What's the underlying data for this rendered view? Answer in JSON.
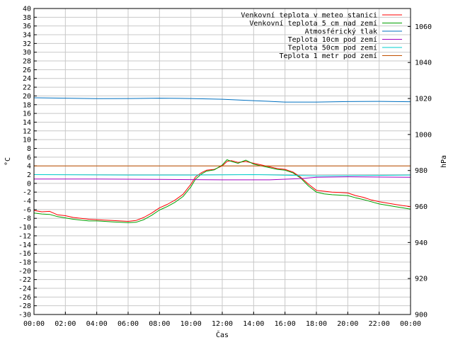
{
  "chart_data": {
    "type": "line",
    "xlabel": "Čas",
    "ylabel": "°C",
    "y2label": "hPa",
    "x_ticks": [
      "00:00",
      "02:00",
      "04:00",
      "06:00",
      "08:00",
      "10:00",
      "12:00",
      "14:00",
      "16:00",
      "18:00",
      "20:00",
      "22:00",
      "00:00"
    ],
    "x_range_hours": [
      0,
      24
    ],
    "ylim": [
      -30,
      40
    ],
    "y_ticks_step": 2,
    "y2lim": [
      900,
      1070
    ],
    "y2_ticks": [
      900,
      920,
      940,
      960,
      980,
      1000,
      1020,
      1040,
      1060
    ],
    "grid": true,
    "legend_position": "top-right",
    "series": [
      {
        "name": "Venkovní teplota v meteo stanici",
        "color": "#ff0000",
        "axis": "left",
        "points": [
          [
            0,
            -6.2
          ],
          [
            0.5,
            -6.5
          ],
          [
            1,
            -6.4
          ],
          [
            1.5,
            -7.2
          ],
          [
            2,
            -7.4
          ],
          [
            2.5,
            -7.8
          ],
          [
            3,
            -8.0
          ],
          [
            3.5,
            -8.2
          ],
          [
            4,
            -8.3
          ],
          [
            4.5,
            -8.4
          ],
          [
            5,
            -8.5
          ],
          [
            5.5,
            -8.6
          ],
          [
            6,
            -8.7
          ],
          [
            6.5,
            -8.5
          ],
          [
            7,
            -7.8
          ],
          [
            7.5,
            -6.8
          ],
          [
            8,
            -5.6
          ],
          [
            8.5,
            -4.8
          ],
          [
            9,
            -3.8
          ],
          [
            9.5,
            -2.5
          ],
          [
            10,
            -0.2
          ],
          [
            10.3,
            1.5
          ],
          [
            10.7,
            2.5
          ],
          [
            11,
            3.0
          ],
          [
            11.5,
            3.2
          ],
          [
            12,
            4.0
          ],
          [
            12.3,
            5.0
          ],
          [
            12.6,
            5.2
          ],
          [
            13,
            4.8
          ],
          [
            13.5,
            5.0
          ],
          [
            14,
            4.6
          ],
          [
            14.5,
            4.2
          ],
          [
            15,
            3.8
          ],
          [
            15.5,
            3.4
          ],
          [
            16,
            3.2
          ],
          [
            16.5,
            2.6
          ],
          [
            17,
            1.4
          ],
          [
            17.5,
            -0.2
          ],
          [
            18,
            -1.6
          ],
          [
            18.5,
            -1.8
          ],
          [
            19,
            -2.0
          ],
          [
            19.5,
            -2.1
          ],
          [
            20,
            -2.2
          ],
          [
            20.5,
            -2.8
          ],
          [
            21,
            -3.2
          ],
          [
            21.5,
            -3.8
          ],
          [
            22,
            -4.2
          ],
          [
            22.5,
            -4.5
          ],
          [
            23,
            -4.8
          ],
          [
            23.5,
            -5.1
          ],
          [
            24,
            -5.3
          ]
        ]
      },
      {
        "name": "Venkovní teplota 5 cm nad zemí",
        "color": "#00a000",
        "axis": "left",
        "points": [
          [
            0,
            -6.8
          ],
          [
            0.5,
            -7.0
          ],
          [
            1,
            -7.1
          ],
          [
            1.5,
            -7.6
          ],
          [
            2,
            -7.9
          ],
          [
            2.5,
            -8.2
          ],
          [
            3,
            -8.4
          ],
          [
            3.5,
            -8.6
          ],
          [
            4,
            -8.6
          ],
          [
            4.5,
            -8.7
          ],
          [
            5,
            -8.8
          ],
          [
            5.5,
            -8.9
          ],
          [
            6,
            -9.0
          ],
          [
            6.5,
            -8.9
          ],
          [
            7,
            -8.3
          ],
          [
            7.5,
            -7.3
          ],
          [
            8,
            -6.1
          ],
          [
            8.5,
            -5.3
          ],
          [
            9,
            -4.3
          ],
          [
            9.5,
            -3.0
          ],
          [
            10,
            -0.8
          ],
          [
            10.3,
            1.0
          ],
          [
            10.7,
            2.2
          ],
          [
            11,
            2.8
          ],
          [
            11.5,
            3.1
          ],
          [
            12,
            4.2
          ],
          [
            12.3,
            5.4
          ],
          [
            12.6,
            5.0
          ],
          [
            13,
            4.6
          ],
          [
            13.5,
            5.3
          ],
          [
            14,
            4.4
          ],
          [
            14.5,
            4.0
          ],
          [
            15,
            3.6
          ],
          [
            15.5,
            3.2
          ],
          [
            16,
            3.0
          ],
          [
            16.5,
            2.4
          ],
          [
            17,
            1.2
          ],
          [
            17.5,
            -0.6
          ],
          [
            18,
            -2.0
          ],
          [
            18.5,
            -2.4
          ],
          [
            19,
            -2.6
          ],
          [
            19.5,
            -2.7
          ],
          [
            20,
            -2.8
          ],
          [
            20.5,
            -3.3
          ],
          [
            21,
            -3.7
          ],
          [
            21.5,
            -4.2
          ],
          [
            22,
            -4.7
          ],
          [
            22.5,
            -5.0
          ],
          [
            23,
            -5.3
          ],
          [
            23.5,
            -5.6
          ],
          [
            24,
            -5.9
          ]
        ]
      },
      {
        "name": "Atmosférický tlak",
        "color": "#0070c0",
        "axis": "right",
        "points": [
          [
            0,
            1020.4
          ],
          [
            2,
            1020.2
          ],
          [
            4,
            1019.9
          ],
          [
            6,
            1020.0
          ],
          [
            8,
            1020.2
          ],
          [
            10,
            1020.0
          ],
          [
            12,
            1019.6
          ],
          [
            14,
            1018.8
          ],
          [
            16,
            1018.0
          ],
          [
            18,
            1018.0
          ],
          [
            20,
            1018.3
          ],
          [
            22,
            1018.4
          ],
          [
            24,
            1018.2
          ]
        ]
      },
      {
        "name": "Teplota 10cm pod zemí",
        "color": "#a000c0",
        "axis": "left",
        "points": [
          [
            0,
            1.0
          ],
          [
            4,
            1.0
          ],
          [
            8,
            0.9
          ],
          [
            12,
            0.8
          ],
          [
            15,
            0.8
          ],
          [
            17,
            1.1
          ],
          [
            18,
            1.4
          ],
          [
            20,
            1.5
          ],
          [
            24,
            1.4
          ]
        ]
      },
      {
        "name": "Teplota 50cm pod zemí",
        "color": "#00d0d0",
        "axis": "left",
        "points": [
          [
            0,
            2.0
          ],
          [
            6,
            1.9
          ],
          [
            10,
            1.9
          ],
          [
            14,
            2.0
          ],
          [
            17,
            1.8
          ],
          [
            18,
            1.7
          ],
          [
            21,
            1.8
          ],
          [
            24,
            1.9
          ]
        ]
      },
      {
        "name": "Teplota 1 metr pod zemí",
        "color": "#c05000",
        "axis": "left",
        "points": [
          [
            0,
            4.0
          ],
          [
            12,
            4.0
          ],
          [
            24,
            4.0
          ]
        ]
      }
    ]
  }
}
